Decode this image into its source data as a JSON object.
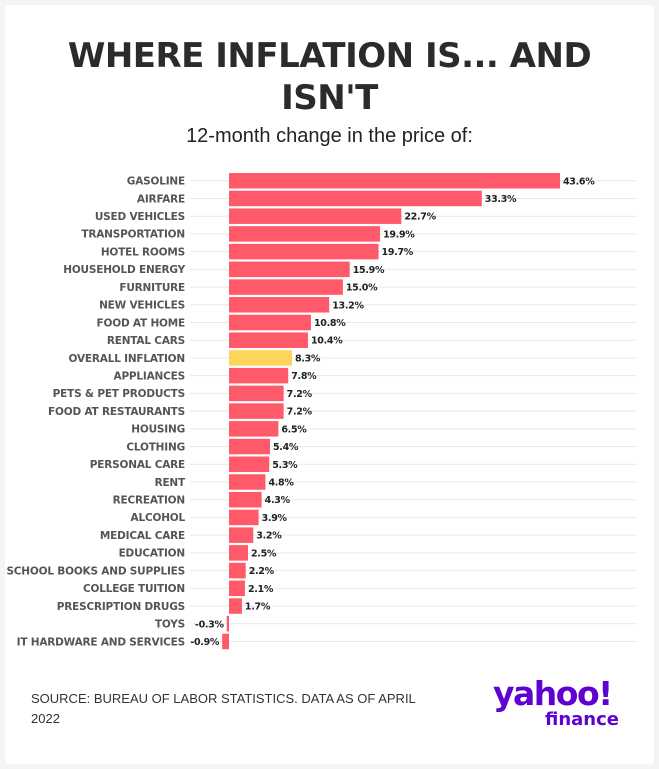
{
  "title_line1": "WHERE INFLATION IS... AND",
  "title_line2": "ISN'T",
  "subtitle": "12-month change in the price of:",
  "source": "SOURCE: BUREAU OF LABOR STATISTICS. DATA AS OF APRIL 2022",
  "logo": {
    "yahoo": "yahoo!",
    "finance": "finance"
  },
  "colors": {
    "bar": "#ff5a6a",
    "highlight": "#fdd55a",
    "logo": "#5f01d1"
  },
  "chart_data": {
    "type": "bar",
    "orientation": "horizontal",
    "title": "WHERE INFLATION IS... AND ISN'T",
    "subtitle": "12-month change in the price of:",
    "unit": "%",
    "highlight": "OVERALL INFLATION",
    "categories": [
      "GASOLINE",
      "AIRFARE",
      "USED VEHICLES",
      "TRANSPORTATION",
      "HOTEL ROOMS",
      "HOUSEHOLD ENERGY",
      "FURNITURE",
      "NEW VEHICLES",
      "FOOD AT HOME",
      "RENTAL CARS",
      "OVERALL INFLATION",
      "APPLIANCES",
      "PETS & PET PRODUCTS",
      "FOOD AT RESTAURANTS",
      "HOUSING",
      "CLOTHING",
      "PERSONAL CARE",
      "RENT",
      "RECREATION",
      "ALCOHOL",
      "MEDICAL CARE",
      "EDUCATION",
      "SCHOOL BOOKS AND SUPPLIES",
      "COLLEGE TUITION",
      "PRESCRIPTION DRUGS",
      "TOYS",
      "IT HARDWARE AND SERVICES"
    ],
    "values": [
      43.6,
      33.3,
      22.7,
      19.9,
      19.7,
      15.9,
      15.0,
      13.2,
      10.8,
      10.4,
      8.3,
      7.8,
      7.2,
      7.2,
      6.5,
      5.4,
      5.3,
      4.8,
      4.3,
      3.9,
      3.2,
      2.5,
      2.2,
      2.1,
      1.7,
      -0.3,
      -0.9
    ],
    "value_labels": [
      "43.6%",
      "33.3%",
      "22.7%",
      "19.9%",
      "19.7%",
      "15.9%",
      "15.0%",
      "13.2%",
      "10.8%",
      "10.4%",
      "8.3%",
      "7.8%",
      "7.2%",
      "7.2%",
      "6.5%",
      "5.4%",
      "5.3%",
      "4.8%",
      "4.3%",
      "3.9%",
      "3.2%",
      "2.5%",
      "2.2%",
      "2.1%",
      "1.7%",
      "-0.3%",
      "-0.9%"
    ],
    "xlim": [
      -0.9,
      43.6
    ],
    "grid": true,
    "legend": "none"
  }
}
